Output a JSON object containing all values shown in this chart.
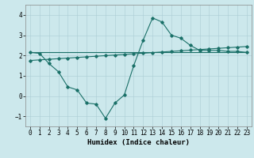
{
  "title": "",
  "xlabel": "Humidex (Indice chaleur)",
  "ylabel": "",
  "bg_color": "#cce8ec",
  "line_color": "#1a7068",
  "grid_color": "#aaccd4",
  "xlim": [
    -0.5,
    23.5
  ],
  "ylim": [
    -1.5,
    4.5
  ],
  "xticks": [
    0,
    1,
    2,
    3,
    4,
    5,
    6,
    7,
    8,
    9,
    10,
    11,
    12,
    13,
    14,
    15,
    16,
    17,
    18,
    19,
    20,
    21,
    22,
    23
  ],
  "yticks": [
    -1,
    0,
    1,
    2,
    3,
    4
  ],
  "line1_x": [
    0,
    1,
    2,
    3,
    4,
    5,
    6,
    7,
    8,
    9,
    10,
    11,
    12,
    13,
    14,
    15,
    16,
    17,
    18,
    19,
    20,
    21,
    22,
    23
  ],
  "line1_y": [
    2.15,
    2.1,
    1.6,
    1.2,
    0.45,
    0.3,
    -0.35,
    -0.4,
    -1.1,
    -0.35,
    0.05,
    1.5,
    2.75,
    3.85,
    3.65,
    3.0,
    2.85,
    2.5,
    2.25,
    2.25,
    2.25,
    2.2,
    2.2,
    2.15
  ],
  "line2_x": [
    0,
    23
  ],
  "line2_y": [
    2.15,
    2.15
  ],
  "line3_x": [
    0,
    1,
    2,
    3,
    4,
    5,
    6,
    7,
    8,
    9,
    10,
    11,
    12,
    13,
    14,
    15,
    16,
    17,
    18,
    19,
    20,
    21,
    22,
    23
  ],
  "line3_y": [
    1.75,
    1.78,
    1.81,
    1.84,
    1.87,
    1.9,
    1.93,
    1.96,
    1.99,
    2.02,
    2.05,
    2.08,
    2.11,
    2.14,
    2.17,
    2.2,
    2.23,
    2.26,
    2.29,
    2.32,
    2.35,
    2.38,
    2.41,
    2.44
  ],
  "marker": "D",
  "markersize": 1.8,
  "linewidth": 0.8,
  "tick_fontsize": 5.5,
  "label_fontsize": 6.5,
  "spine_color": "#888888"
}
